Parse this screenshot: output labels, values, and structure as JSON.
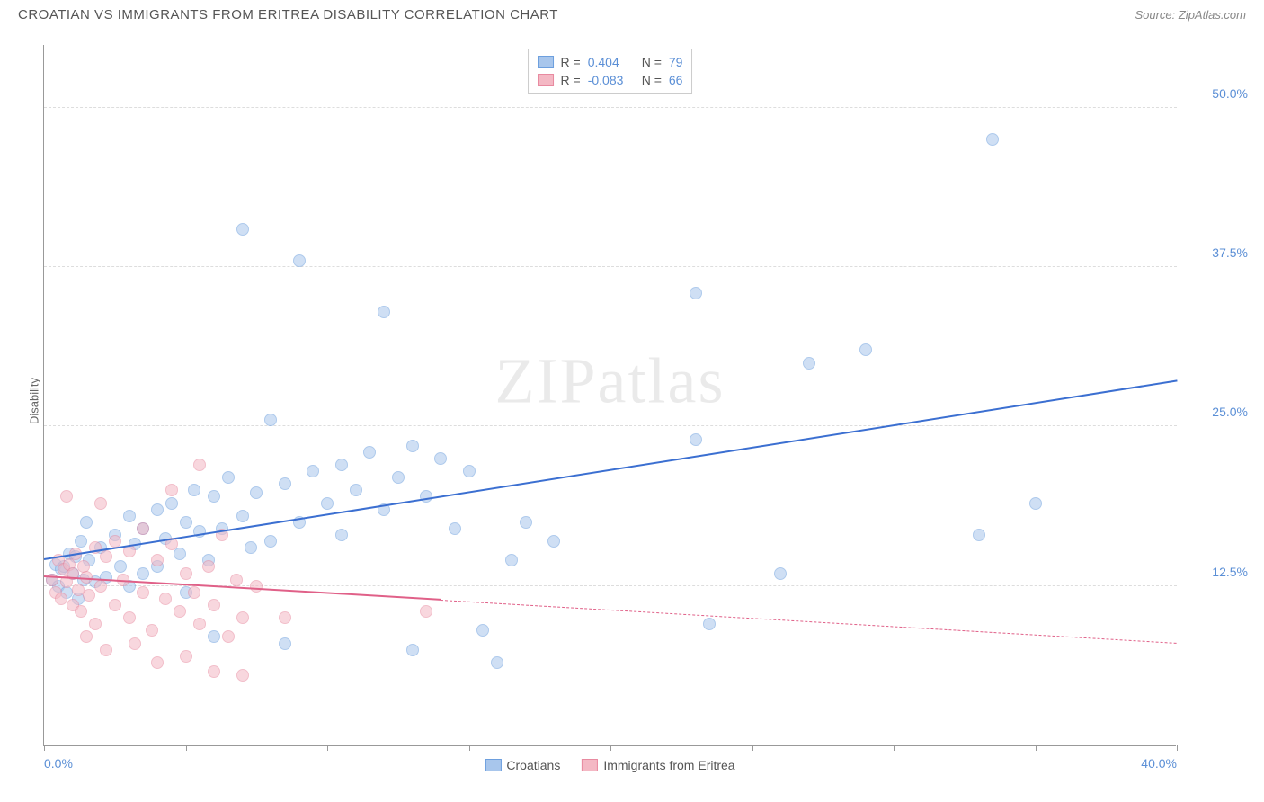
{
  "title": "CROATIAN VS IMMIGRANTS FROM ERITREA DISABILITY CORRELATION CHART",
  "source_label": "Source: ",
  "source_name": "ZipAtlas.com",
  "watermark": "ZIPatlas",
  "ylabel": "Disability",
  "chart": {
    "type": "scatter",
    "xlim": [
      0,
      40
    ],
    "ylim": [
      0,
      55
    ],
    "y_gridlines": [
      12.5,
      25.0,
      37.5,
      50.0
    ],
    "y_tick_labels": [
      "12.5%",
      "25.0%",
      "37.5%",
      "50.0%"
    ],
    "x_ticks": [
      0,
      5,
      10,
      15,
      20,
      25,
      30,
      35,
      40
    ],
    "x_left_label": "0.0%",
    "x_right_label": "40.0%",
    "background_color": "#ffffff",
    "grid_color": "#dddddd",
    "axis_color": "#999999",
    "point_radius": 7,
    "point_opacity": 0.55,
    "series": [
      {
        "name": "Croatians",
        "fill": "#a8c6ec",
        "stroke": "#6d9fde",
        "line_color": "#3b6fd1",
        "r_label": "R =",
        "r_value": "0.404",
        "n_label": "N =",
        "n_value": "79",
        "trend": {
          "x0": 0,
          "y0": 14.5,
          "x1": 40,
          "y1": 28.5,
          "solid_until_x": 40
        },
        "points": [
          [
            0.3,
            13.0
          ],
          [
            0.4,
            14.2
          ],
          [
            0.5,
            12.5
          ],
          [
            0.6,
            13.8
          ],
          [
            0.7,
            14.0
          ],
          [
            0.8,
            12.0
          ],
          [
            0.9,
            15.0
          ],
          [
            1.0,
            13.5
          ],
          [
            1.1,
            14.8
          ],
          [
            1.2,
            11.5
          ],
          [
            1.3,
            16.0
          ],
          [
            1.4,
            13.0
          ],
          [
            1.5,
            17.5
          ],
          [
            1.6,
            14.5
          ],
          [
            1.8,
            12.8
          ],
          [
            2.0,
            15.5
          ],
          [
            2.2,
            13.2
          ],
          [
            2.5,
            16.5
          ],
          [
            2.7,
            14.0
          ],
          [
            3.0,
            18.0
          ],
          [
            3.0,
            12.5
          ],
          [
            3.2,
            15.8
          ],
          [
            3.5,
            17.0
          ],
          [
            3.5,
            13.5
          ],
          [
            4.0,
            18.5
          ],
          [
            4.0,
            14.0
          ],
          [
            4.3,
            16.2
          ],
          [
            4.5,
            19.0
          ],
          [
            4.8,
            15.0
          ],
          [
            5.0,
            17.5
          ],
          [
            5.0,
            12.0
          ],
          [
            5.3,
            20.0
          ],
          [
            5.5,
            16.8
          ],
          [
            5.8,
            14.5
          ],
          [
            6.0,
            19.5
          ],
          [
            6.0,
            8.5
          ],
          [
            6.3,
            17.0
          ],
          [
            6.5,
            21.0
          ],
          [
            7.0,
            40.5
          ],
          [
            7.0,
            18.0
          ],
          [
            7.3,
            15.5
          ],
          [
            7.5,
            19.8
          ],
          [
            8.0,
            25.5
          ],
          [
            8.0,
            16.0
          ],
          [
            8.5,
            20.5
          ],
          [
            8.5,
            8.0
          ],
          [
            9.0,
            38.0
          ],
          [
            9.0,
            17.5
          ],
          [
            9.5,
            21.5
          ],
          [
            10.0,
            19.0
          ],
          [
            10.5,
            22.0
          ],
          [
            10.5,
            16.5
          ],
          [
            11.0,
            20.0
          ],
          [
            11.5,
            23.0
          ],
          [
            12.0,
            34.0
          ],
          [
            12.0,
            18.5
          ],
          [
            12.5,
            21.0
          ],
          [
            13.0,
            23.5
          ],
          [
            13.0,
            7.5
          ],
          [
            13.5,
            19.5
          ],
          [
            14.0,
            22.5
          ],
          [
            14.5,
            17.0
          ],
          [
            15.0,
            21.5
          ],
          [
            15.5,
            9.0
          ],
          [
            16.0,
            6.5
          ],
          [
            16.5,
            14.5
          ],
          [
            17.0,
            17.5
          ],
          [
            18.0,
            16.0
          ],
          [
            23.0,
            35.5
          ],
          [
            23.0,
            24.0
          ],
          [
            23.5,
            9.5
          ],
          [
            26.0,
            13.5
          ],
          [
            27.0,
            30.0
          ],
          [
            29.0,
            31.0
          ],
          [
            33.0,
            16.5
          ],
          [
            33.5,
            47.5
          ],
          [
            35.0,
            19.0
          ]
        ]
      },
      {
        "name": "Immigrants from Eritrea",
        "fill": "#f4b8c4",
        "stroke": "#e88aa0",
        "line_color": "#e06088",
        "r_label": "R =",
        "r_value": "-0.083",
        "n_label": "N =",
        "n_value": "66",
        "trend": {
          "x0": 0,
          "y0": 13.2,
          "x1": 40,
          "y1": 8.0,
          "solid_until_x": 14
        },
        "points": [
          [
            0.3,
            13.0
          ],
          [
            0.4,
            12.0
          ],
          [
            0.5,
            14.5
          ],
          [
            0.6,
            11.5
          ],
          [
            0.7,
            13.8
          ],
          [
            0.8,
            12.8
          ],
          [
            0.8,
            19.5
          ],
          [
            0.9,
            14.2
          ],
          [
            1.0,
            11.0
          ],
          [
            1.0,
            13.5
          ],
          [
            1.1,
            15.0
          ],
          [
            1.2,
            12.2
          ],
          [
            1.3,
            10.5
          ],
          [
            1.4,
            14.0
          ],
          [
            1.5,
            13.2
          ],
          [
            1.5,
            8.5
          ],
          [
            1.6,
            11.8
          ],
          [
            1.8,
            15.5
          ],
          [
            1.8,
            9.5
          ],
          [
            2.0,
            12.5
          ],
          [
            2.0,
            19.0
          ],
          [
            2.2,
            14.8
          ],
          [
            2.2,
            7.5
          ],
          [
            2.5,
            11.0
          ],
          [
            2.5,
            16.0
          ],
          [
            2.8,
            13.0
          ],
          [
            3.0,
            10.0
          ],
          [
            3.0,
            15.2
          ],
          [
            3.2,
            8.0
          ],
          [
            3.5,
            12.0
          ],
          [
            3.5,
            17.0
          ],
          [
            3.8,
            9.0
          ],
          [
            4.0,
            14.5
          ],
          [
            4.0,
            6.5
          ],
          [
            4.3,
            11.5
          ],
          [
            4.5,
            15.8
          ],
          [
            4.5,
            20.0
          ],
          [
            4.8,
            10.5
          ],
          [
            5.0,
            13.5
          ],
          [
            5.0,
            7.0
          ],
          [
            5.3,
            12.0
          ],
          [
            5.5,
            22.0
          ],
          [
            5.5,
            9.5
          ],
          [
            5.8,
            14.0
          ],
          [
            6.0,
            11.0
          ],
          [
            6.0,
            5.8
          ],
          [
            6.3,
            16.5
          ],
          [
            6.5,
            8.5
          ],
          [
            6.8,
            13.0
          ],
          [
            7.0,
            10.0
          ],
          [
            7.0,
            5.5
          ],
          [
            7.5,
            12.5
          ],
          [
            8.5,
            10.0
          ],
          [
            13.5,
            10.5
          ]
        ]
      }
    ]
  },
  "legend_bottom": [
    {
      "label": "Croatians",
      "series": 0
    },
    {
      "label": "Immigrants from Eritrea",
      "series": 1
    }
  ]
}
